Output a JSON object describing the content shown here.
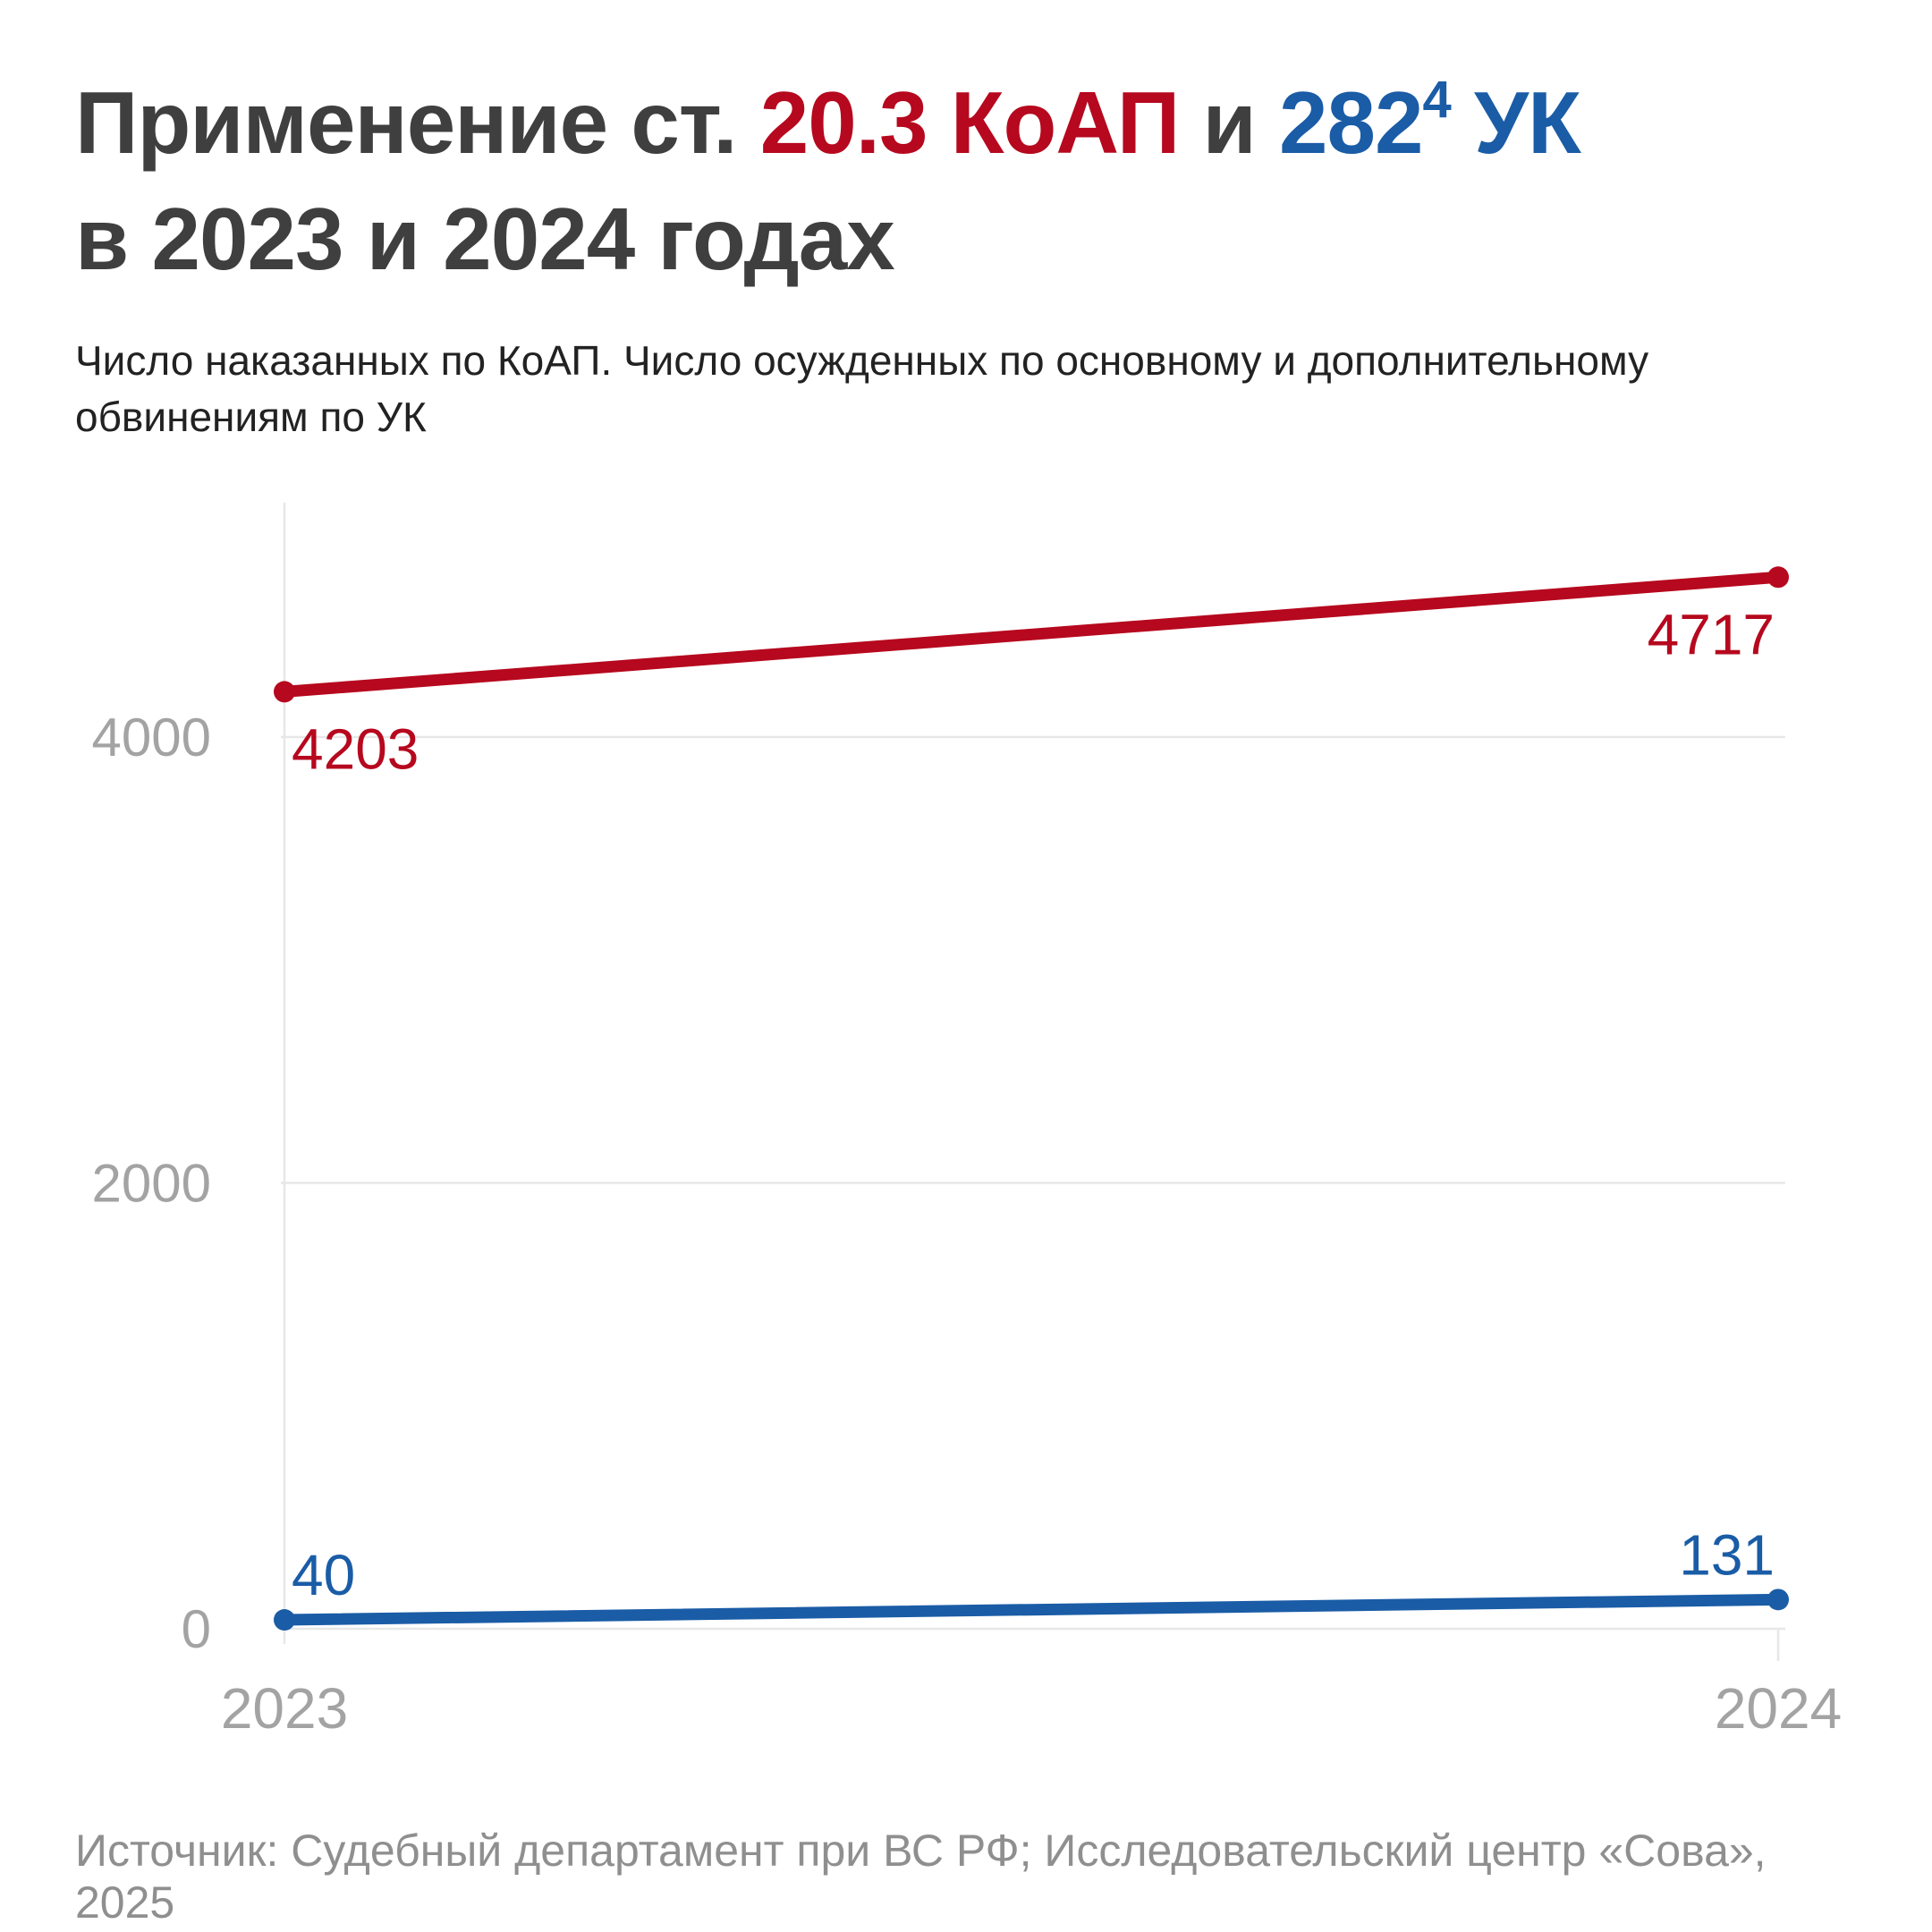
{
  "title": {
    "prefix": "Применение ст. ",
    "red_part": "20.3 КоАП",
    "connector": " и ",
    "blue_base": "282",
    "blue_sup": "4",
    "blue_suffix": " УК",
    "line2": "в 2023 и 2024 годах"
  },
  "subtitle": "Число наказанных по КоАП. Число осужденных по основному и дополнительному обвинениям по УК",
  "footer": "Источник: Судебный департамент при ВС РФ; Исследовательский центр «Сова», 2025",
  "colors": {
    "red": "#b6081e",
    "blue": "#1a5ca6",
    "title_text": "#3f3f3f",
    "subtitle_text": "#222222",
    "axis_text": "#a3a3a3",
    "footer_text": "#8f8f8f",
    "grid": "#e7e7e7"
  },
  "chart_data": {
    "type": "line",
    "title": "Применение ст. 20.3 КоАП и 282⁴ УК в 2023 и 2024 годах",
    "subtitle": "Число наказанных по КоАП. Число осужденных по основному и дополнительному обвинениям по УК",
    "categories": [
      "2023",
      "2024"
    ],
    "series": [
      {
        "name": "ст. 20.3 КоАП",
        "color_key": "red",
        "values": [
          4203,
          4717
        ],
        "data_labels": [
          "4203",
          "4717"
        ],
        "label_position": "below"
      },
      {
        "name": "ст. 282⁴ УК",
        "color_key": "blue",
        "values": [
          40,
          131
        ],
        "data_labels": [
          "40",
          "131"
        ],
        "label_position": "above"
      }
    ],
    "ylim": [
      0,
      4800
    ],
    "yticks": [
      0,
      2000,
      4000
    ],
    "xlabel": "",
    "ylabel": "",
    "grid": true,
    "legend": "none",
    "source": "Судебный департамент при ВС РФ; Исследовательский центр «Сова», 2025"
  }
}
